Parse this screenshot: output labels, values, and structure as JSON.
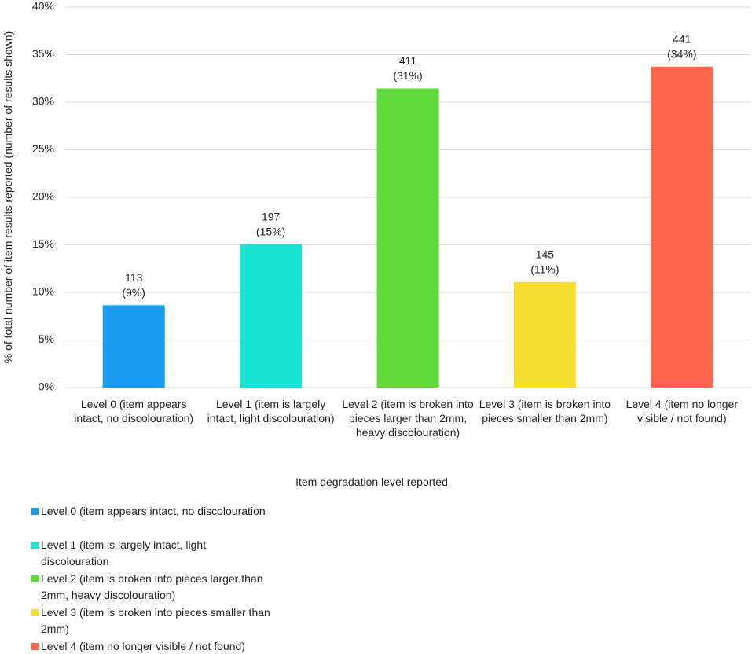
{
  "chart_data": {
    "type": "bar",
    "x_label": "Item degradation level reported",
    "y_label": "% of total number of item results reported (number of results shown)",
    "categories": [
      "Level 0 (item appears intact, no discolouration)",
      "Level 1 (item is largely intact, light discolouration)",
      "Level 2 (item is broken into pieces larger than 2mm, heavy discolouration)",
      "Level 3 (item is broken into pieces smaller than 2mm)",
      "Level 4 (item no longer visible / not found)"
    ],
    "values": [
      8.65,
      15.07,
      31.45,
      11.09,
      33.74
    ],
    "value_labels": [
      "(9%)",
      "(15%)",
      "(31%)",
      "(11%)",
      "(34%)"
    ],
    "counts": [
      113,
      197,
      411,
      145,
      441
    ],
    "colors": [
      "#1a9cf0",
      "#1ae3d1",
      "#62d93b",
      "#f5e031",
      "#fe654a"
    ],
    "legend": [
      "Level 0 (item appears intact, no discolouration",
      "Level 1 (item is largely intact, light discolouration",
      "Level 2 (item is broken into pieces larger than 2mm, heavy discolouration)",
      "Level 3 (item is broken into pieces smaller than 2mm)",
      "Level 4 (item no longer visible / not found)"
    ],
    "ylim": [
      0,
      40
    ],
    "yticks": [
      {
        "value": 0,
        "label": "0%"
      },
      {
        "value": 5,
        "label": "5%"
      },
      {
        "value": 10,
        "label": "10%"
      },
      {
        "value": 15,
        "label": "15%"
      },
      {
        "value": 20,
        "label": "20%"
      },
      {
        "value": 25,
        "label": "25%"
      },
      {
        "value": 30,
        "label": "30%"
      },
      {
        "value": 35,
        "label": "35%"
      },
      {
        "value": 40,
        "label": "40%"
      }
    ],
    "grid": true
  }
}
